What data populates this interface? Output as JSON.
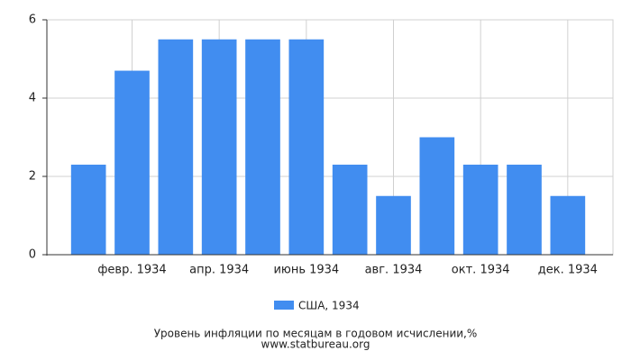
{
  "chart_data": {
    "type": "bar",
    "title": "Уровень инфляции по месяцам в годовом исчислении,%",
    "source": "www.statbureau.org",
    "categories": [
      null,
      "февр. 1934",
      null,
      "апр. 1934",
      null,
      "июнь 1934",
      null,
      "авг. 1934",
      null,
      "окт. 1934",
      null,
      "дек. 1934"
    ],
    "series": [
      {
        "name": "США, 1934",
        "color": "#418df0",
        "values": [
          2.3,
          4.7,
          5.5,
          5.5,
          5.5,
          5.5,
          2.3,
          1.5,
          3.0,
          2.3,
          2.3,
          1.5
        ]
      }
    ],
    "ylim": [
      0,
      6
    ],
    "yticks": [
      0,
      2,
      4,
      6
    ],
    "grid": true
  }
}
